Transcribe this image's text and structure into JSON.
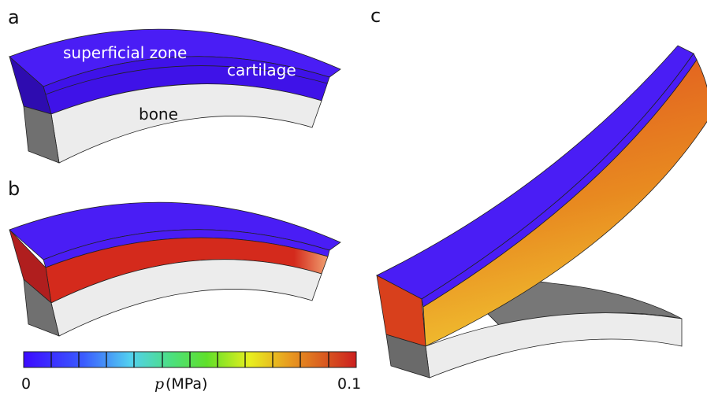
{
  "panels": {
    "a": {
      "label": "a",
      "annotations": {
        "superficial_zone": "superficial zone",
        "cartilage": "cartilage",
        "bone": "bone"
      }
    },
    "b": {
      "label": "b"
    },
    "c": {
      "label": "c"
    }
  },
  "colorbar": {
    "min_label": "0",
    "max_label": "0.1",
    "symbol": "p",
    "unit": "(MPa)"
  }
}
